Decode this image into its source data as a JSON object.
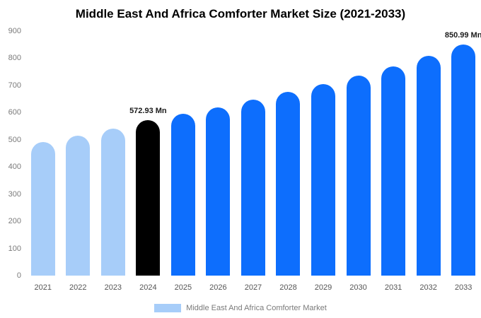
{
  "title": "Middle East And Africa Comforter Market Size (2021-2033)",
  "legend": {
    "label": "Middle East And Africa Comforter Market",
    "swatch_color": "#a7cdf9"
  },
  "chart_data": {
    "type": "bar",
    "title": "Middle East And Africa Comforter Market Size (2021-2033)",
    "categories": [
      "2021",
      "2022",
      "2023",
      "2024",
      "2025",
      "2026",
      "2027",
      "2028",
      "2029",
      "2030",
      "2031",
      "2032",
      "2033"
    ],
    "values": [
      492,
      516,
      540,
      572.93,
      595,
      618,
      647,
      676,
      705,
      737,
      770,
      810,
      850.99
    ],
    "colors": [
      "#a7cdf9",
      "#a7cdf9",
      "#a7cdf9",
      "#000000",
      "#0d6efd",
      "#0d6efd",
      "#0d6efd",
      "#0d6efd",
      "#0d6efd",
      "#0d6efd",
      "#0d6efd",
      "#0d6efd",
      "#0d6efd"
    ],
    "annotations": [
      {
        "category": "2024",
        "text": "572.93 Mn"
      },
      {
        "category": "2033",
        "text": "850.99 Mn"
      }
    ],
    "xlabel": "",
    "ylabel": "",
    "ylim": [
      0,
      900
    ],
    "ytick_step": 100,
    "grid": false,
    "legend_position": "bottom"
  }
}
